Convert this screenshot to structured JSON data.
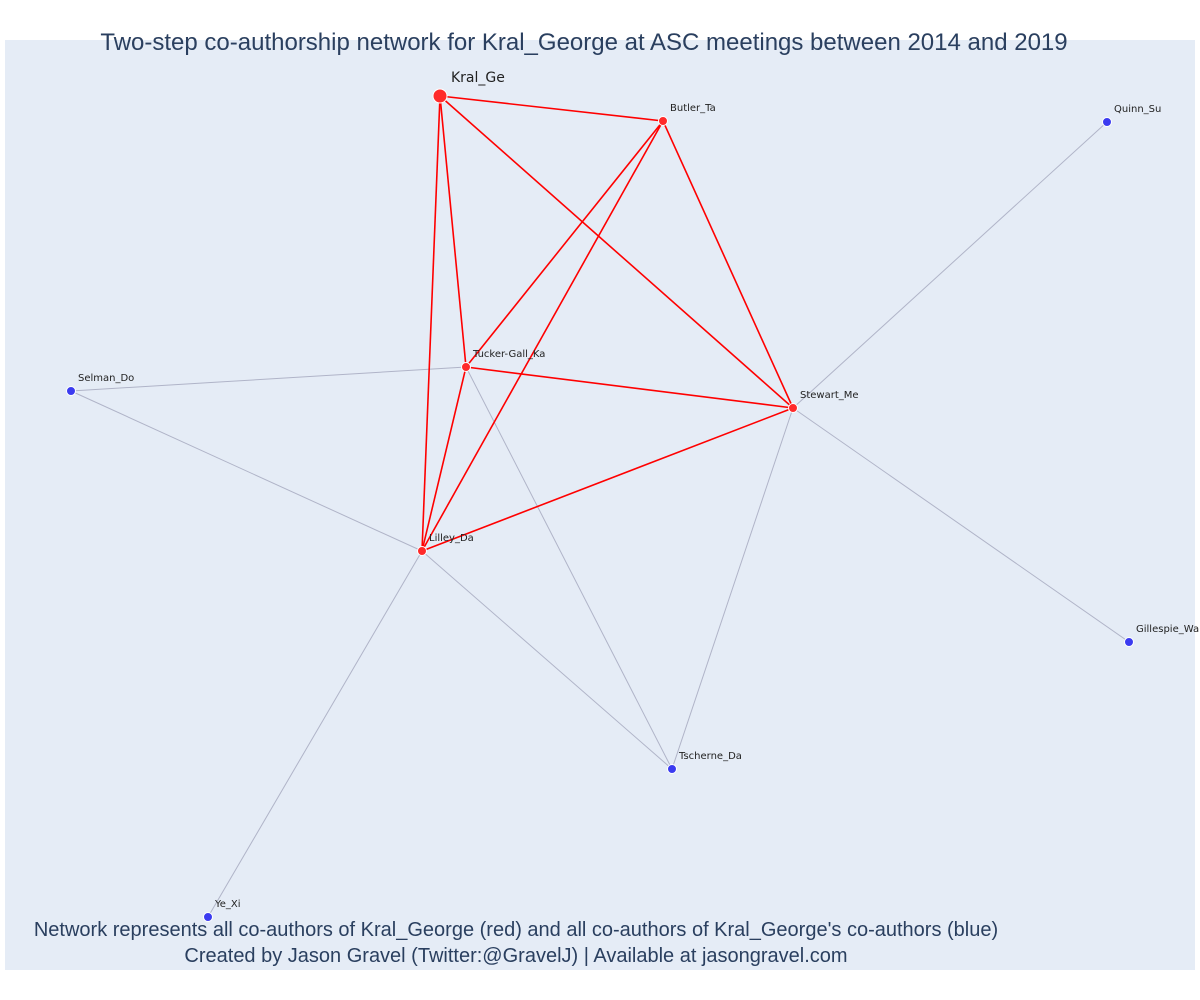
{
  "title": "Two-step co-authorship network for Kral_George at ASC meetings between 2014 and 2019",
  "footer": {
    "line1": "Network represents all co-authors of Kral_George (red) and all co-authors of Kral_George's co-authors (blue)",
    "line2": "Created by Jason Gravel (Twitter:@GravelJ) | Available at jasongravel.com"
  },
  "colors": {
    "background": "#e5ecf6",
    "red_node": "#ff2a2a",
    "blue_node": "#3b3bf0",
    "red_edge": "#ff0000",
    "gray_edge": "#b0b4c8",
    "text": "#2a3f5f"
  },
  "nodes": [
    {
      "id": "Kral_Ge",
      "label": "Kral_Ge",
      "group": "ego"
    },
    {
      "id": "Butler_Ta",
      "label": "Butler_Ta",
      "group": "red"
    },
    {
      "id": "Tucker-Gall_Ka",
      "label": "Tucker-Gall_Ka",
      "group": "red"
    },
    {
      "id": "Stewart_Me",
      "label": "Stewart_Me",
      "group": "red"
    },
    {
      "id": "Lilley_Da",
      "label": "Lilley_Da",
      "group": "red"
    },
    {
      "id": "Quinn_Su",
      "label": "Quinn_Su",
      "group": "blue"
    },
    {
      "id": "Selman_Do",
      "label": "Selman_Do",
      "group": "blue"
    },
    {
      "id": "Gillespie_Wa",
      "label": "Gillespie_Wa",
      "group": "blue"
    },
    {
      "id": "Tscherne_Da",
      "label": "Tscherne_Da",
      "group": "blue"
    },
    {
      "id": "Ye_Xi",
      "label": "Ye_Xi",
      "group": "blue"
    }
  ],
  "edges": [
    {
      "source": "Kral_Ge",
      "target": "Butler_Ta",
      "type": "red"
    },
    {
      "source": "Kral_Ge",
      "target": "Tucker-Gall_Ka",
      "type": "red"
    },
    {
      "source": "Kral_Ge",
      "target": "Stewart_Me",
      "type": "red"
    },
    {
      "source": "Kral_Ge",
      "target": "Lilley_Da",
      "type": "red"
    },
    {
      "source": "Butler_Ta",
      "target": "Tucker-Gall_Ka",
      "type": "red"
    },
    {
      "source": "Butler_Ta",
      "target": "Stewart_Me",
      "type": "red"
    },
    {
      "source": "Butler_Ta",
      "target": "Lilley_Da",
      "type": "red"
    },
    {
      "source": "Tucker-Gall_Ka",
      "target": "Stewart_Me",
      "type": "red"
    },
    {
      "source": "Tucker-Gall_Ka",
      "target": "Lilley_Da",
      "type": "red"
    },
    {
      "source": "Lilley_Da",
      "target": "Stewart_Me",
      "type": "red"
    },
    {
      "source": "Stewart_Me",
      "target": "Quinn_Su",
      "type": "gray"
    },
    {
      "source": "Stewart_Me",
      "target": "Gillespie_Wa",
      "type": "gray"
    },
    {
      "source": "Stewart_Me",
      "target": "Tscherne_Da",
      "type": "gray"
    },
    {
      "source": "Tucker-Gall_Ka",
      "target": "Selman_Do",
      "type": "gray"
    },
    {
      "source": "Tucker-Gall_Ka",
      "target": "Tscherne_Da",
      "type": "gray"
    },
    {
      "source": "Lilley_Da",
      "target": "Selman_Do",
      "type": "gray"
    },
    {
      "source": "Lilley_Da",
      "target": "Tscherne_Da",
      "type": "gray"
    },
    {
      "source": "Lilley_Da",
      "target": "Ye_Xi",
      "type": "gray"
    }
  ]
}
